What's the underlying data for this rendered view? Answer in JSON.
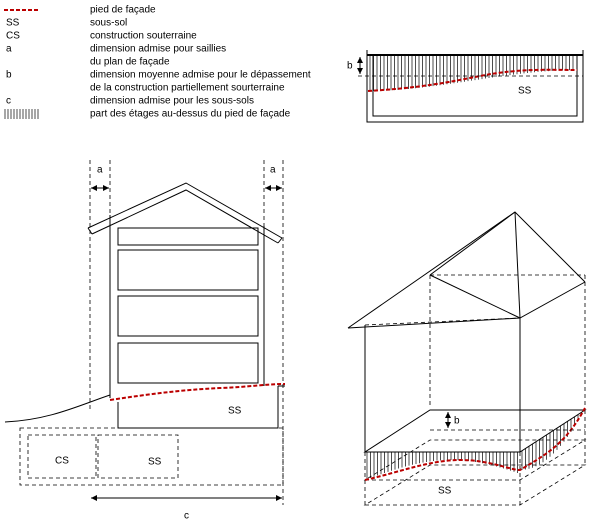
{
  "legend": [
    {
      "lines": [
        "pied de façade"
      ]
    },
    {
      "key": "SS",
      "lines": [
        "sous-sol"
      ]
    },
    {
      "key": "CS",
      "lines": [
        "construction souterraine"
      ]
    },
    {
      "key": "a",
      "lines": [
        "dimension admise pour saillies",
        "du plan de façade"
      ]
    },
    {
      "key": "b",
      "lines": [
        "dimension moyenne admise pour le dépassement",
        "de la construction partiellement sourterraine"
      ]
    },
    {
      "key": "c",
      "lines": [
        "dimension admise pour les sous-sols"
      ]
    },
    {
      "lines": [
        "part des étages au-dessus du pied de façade"
      ]
    }
  ],
  "section": {
    "b": "b",
    "ss": "SS"
  },
  "elevation": {
    "a_left": "a",
    "a_right": "a",
    "ss": "SS",
    "cs": "CS",
    "ss_lower": "SS",
    "c": "c"
  },
  "perspective": {
    "b": "b",
    "ss": "SS"
  }
}
